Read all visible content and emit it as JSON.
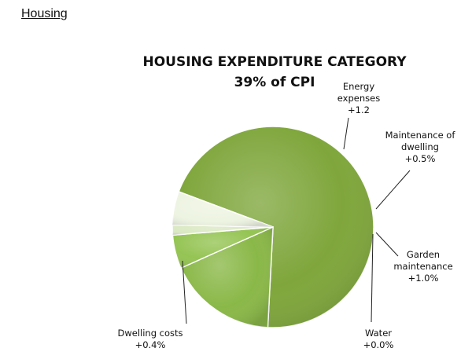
{
  "page": {
    "heading": "Housing"
  },
  "chart_data": {
    "type": "pie",
    "title": "HOUSING EXPENDITURE CATEGORY",
    "subtitle": "39% of CPI",
    "slices": [
      {
        "label": [
          "Dwelling costs",
          "+0.4%"
        ],
        "share": 0.701,
        "color": "#7fa63c"
      },
      {
        "label": [
          "Energy",
          "expenses",
          "+1.2"
        ],
        "share": 0.175,
        "color": "#8ab848"
      },
      {
        "label": [
          "Maintenance of",
          "dwelling",
          "+0.5%"
        ],
        "share": 0.054,
        "color": "#95c454"
      },
      {
        "label": [
          "Water",
          "+0.0%"
        ],
        "share": 0.016,
        "color": "#dbe9c4"
      },
      {
        "label": [
          "Garden",
          "maintenance",
          "+1.0%"
        ],
        "share": 0.054,
        "color": "#eef4e2"
      }
    ]
  }
}
